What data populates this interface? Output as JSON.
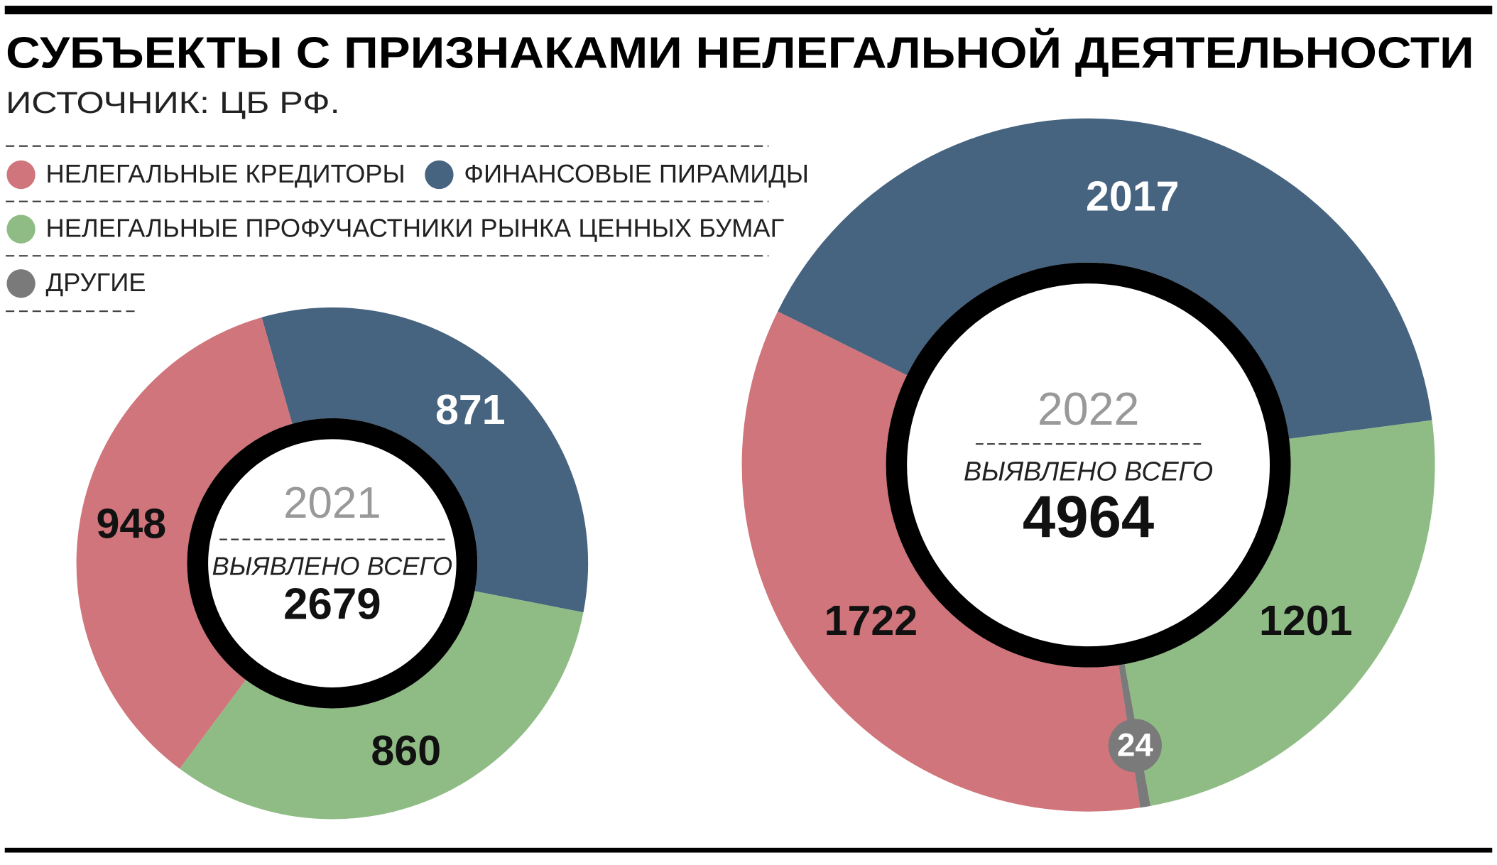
{
  "title": "СУБЪЕКТЫ С ПРИЗНАКАМИ НЕЛЕГАЛЬНОЙ ДЕЯТЕЛЬНОСТИ",
  "source": "ИСТОЧНИК: ЦБ РФ.",
  "legend": [
    {
      "name": "НЕЛЕГАЛЬНЫЕ КРЕДИТОРЫ",
      "color": "#cf757b"
    },
    {
      "name": "ФИНАНСОВЫЕ ПИРАМИДЫ",
      "color": "#46637f"
    },
    {
      "name": "НЕЛЕГАЛЬНЫЕ ПРОФУЧАСТНИКИ РЫНКА ЦЕННЫХ БУМАГ",
      "color": "#8fbc85"
    },
    {
      "name": "ДРУГИЕ",
      "color": "#7a7a7a"
    }
  ],
  "chart_data": [
    {
      "type": "pie",
      "title": "2021",
      "subtitle": "ВЫЯВЛЕНО ВСЕГО",
      "total": 2679,
      "values": [
        948,
        871,
        860,
        null
      ]
    },
    {
      "type": "pie",
      "title": "2022",
      "subtitle": "ВЫЯВЛЕНО ВСЕГО",
      "total": 4964,
      "values": [
        1722,
        2017,
        1201,
        24
      ]
    }
  ]
}
